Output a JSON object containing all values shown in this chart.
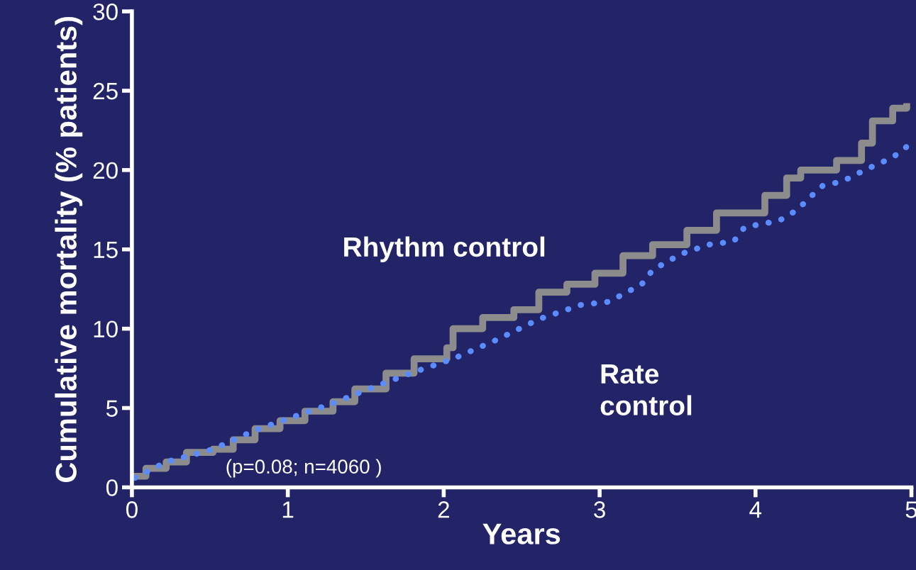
{
  "chart_data": {
    "type": "line",
    "xlabel": "Years",
    "ylabel": "Cumulative mortality (% patients)",
    "xlim": [
      0,
      5
    ],
    "xticks": [
      0,
      1,
      2,
      3,
      4,
      5
    ],
    "ylim": [
      0,
      30
    ],
    "yticks": [
      0,
      5,
      10,
      15,
      20,
      25,
      30
    ],
    "grid": false,
    "legend": false,
    "series": [
      {
        "name": "Rhythm control",
        "type": "step",
        "color": "#8c8c8c",
        "line_style": "solid",
        "x": [
          0.02,
          0.09,
          0.22,
          0.35,
          0.52,
          0.65,
          0.79,
          0.95,
          1.11,
          1.29,
          1.43,
          1.63,
          1.81,
          2.02,
          2.06,
          2.25,
          2.45,
          2.61,
          2.79,
          2.97,
          3.15,
          3.34,
          3.56,
          3.75,
          4.06,
          4.2,
          4.29,
          4.52,
          4.68,
          4.75,
          4.88,
          4.97
        ],
        "values": [
          0.7,
          1.2,
          1.6,
          2.2,
          2.4,
          3.0,
          3.7,
          4.2,
          4.8,
          5.4,
          6.2,
          7.2,
          8.1,
          8.8,
          10.0,
          10.7,
          11.2,
          12.3,
          12.8,
          13.5,
          14.6,
          15.3,
          16.2,
          17.3,
          18.4,
          19.5,
          20.0,
          20.6,
          21.7,
          23.1,
          23.9,
          24.0
        ]
      },
      {
        "name": "Rate control",
        "color": "#5b8cff",
        "line_style": "dotted",
        "x": [
          0.02,
          0.22,
          0.52,
          0.79,
          1.11,
          1.29,
          1.52,
          1.79,
          2.06,
          2.34,
          2.61,
          2.88,
          3.06,
          3.27,
          3.34,
          3.52,
          3.7,
          3.86,
          3.93,
          4.15,
          4.27,
          4.34,
          4.43,
          4.56,
          4.7,
          4.88,
          5.0
        ],
        "values": [
          0.6,
          1.6,
          2.4,
          3.6,
          4.7,
          5.3,
          6.2,
          7.2,
          8.1,
          9.3,
          10.6,
          11.5,
          11.7,
          12.8,
          13.7,
          14.7,
          15.3,
          15.5,
          16.4,
          16.8,
          17.5,
          18.2,
          19.0,
          19.3,
          20.0,
          20.8,
          21.7
        ]
      }
    ],
    "annotations": [
      "(p=0.08; n=4060 )"
    ]
  }
}
